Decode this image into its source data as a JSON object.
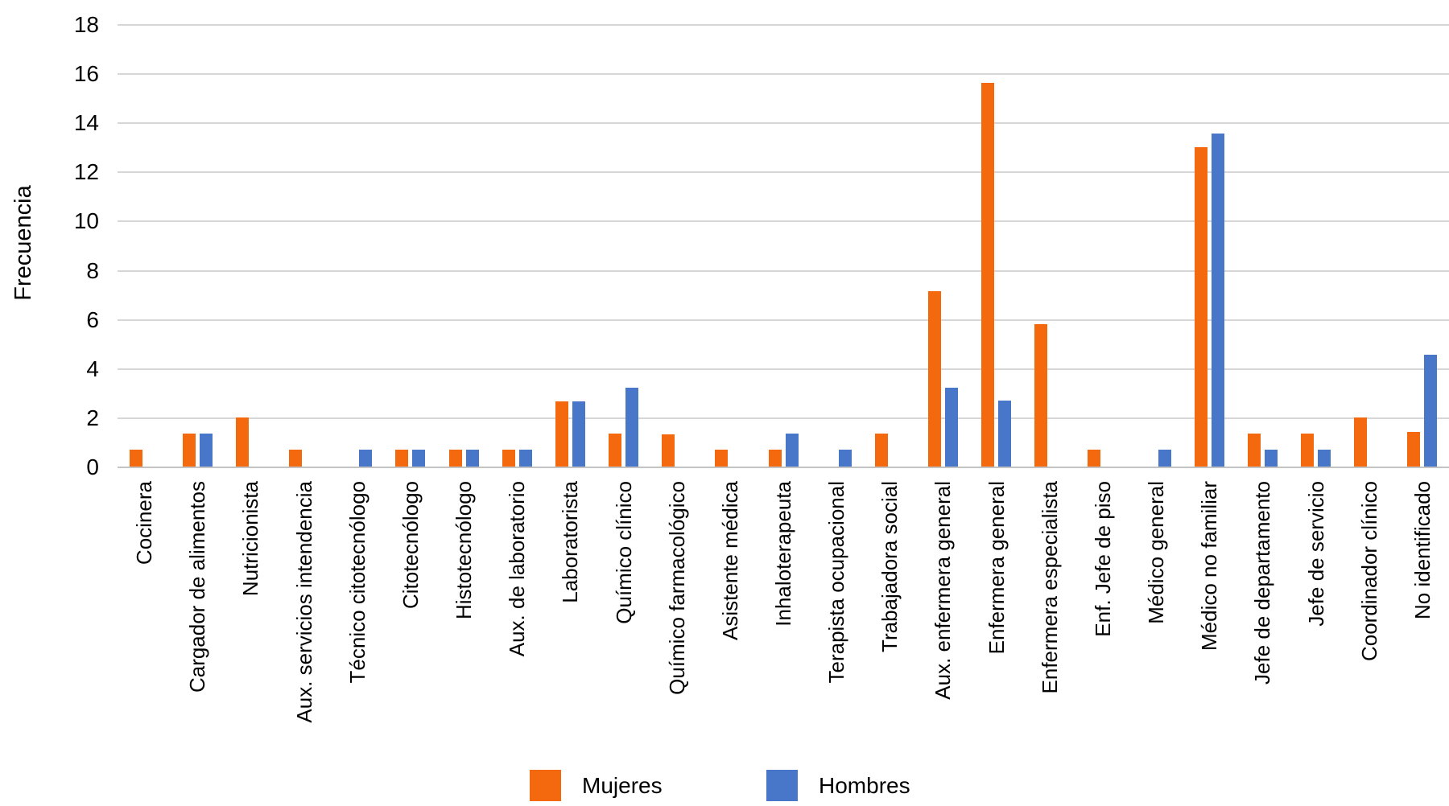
{
  "chart_data": {
    "type": "bar",
    "title": "",
    "xlabel": "",
    "ylabel": "Frecuencia",
    "ylim": [
      0,
      18
    ],
    "yticks": [
      0,
      2,
      4,
      6,
      8,
      10,
      12,
      14,
      16,
      18
    ],
    "grid": true,
    "legend_position": "bottom",
    "categories": [
      "Cocinera",
      "Cargador de alimentos",
      "Nutricionista",
      "Aux. servicios intendencia",
      "Técnico citotecnólogo",
      "Citotecnólogo",
      "Histotecnólogo",
      "Aux. de laboratorio",
      "Laboratorista",
      "Químico clínico",
      "Químico farmacológico",
      "Asistente médica",
      "Inhaloterapeuta",
      "Terapista ocupacional",
      "Trabajadora social",
      "Aux. enfermera general",
      "Enfermera general",
      "Enfermera especialista",
      "Enf. Jefe de piso",
      "Médico general",
      "Médico no familiar",
      "Jefe de departamento",
      "Jefe de servicio",
      "Coordinador clínico",
      "No identificado"
    ],
    "series": [
      {
        "name": "Mujeres",
        "color": "#F4690E",
        "values": [
          0.7,
          1.35,
          2.0,
          0.7,
          0,
          0.7,
          0.7,
          0.7,
          2.65,
          1.35,
          1.3,
          0.7,
          0.7,
          0,
          1.35,
          7.15,
          15.6,
          5.8,
          0.7,
          0,
          13.0,
          1.35,
          1.35,
          2.0,
          1.4
        ]
      },
      {
        "name": "Hombres",
        "color": "#4876C8",
        "values": [
          0,
          1.35,
          0,
          0,
          0.7,
          0.7,
          0.7,
          0.7,
          2.65,
          3.2,
          0,
          0,
          1.35,
          0.7,
          0,
          3.2,
          2.7,
          0,
          0,
          0.7,
          13.55,
          0.7,
          0.7,
          0,
          4.55
        ]
      }
    ]
  },
  "colors": {
    "gridline": "#D6D6D6",
    "axis_line": "#C3C3C3",
    "text": "#000000",
    "background": "#FFFFFF"
  }
}
